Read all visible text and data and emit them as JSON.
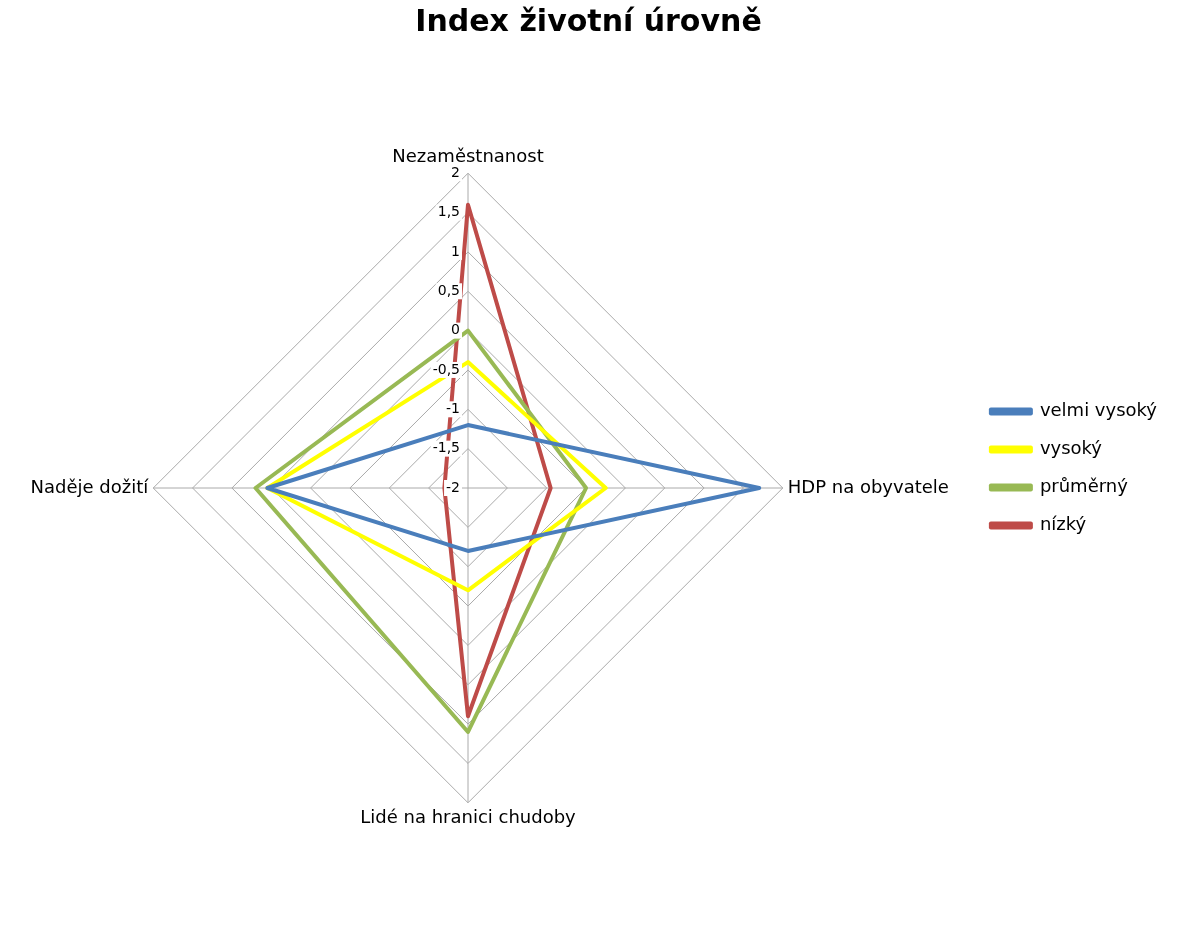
{
  "chart_data": {
    "type": "radar",
    "title": "Index životní úrovně",
    "categories": [
      "Nezaměstnanost",
      "HDP na obyvatele",
      "Lidé na hranici chudoby",
      "Naděje dožití"
    ],
    "series": [
      {
        "name": "velmi vysoký",
        "color": "#4a7ebb",
        "values": [
          -1.2,
          1.7,
          -1.2,
          0.55
        ]
      },
      {
        "name": "vysoký",
        "color": "#ffff00",
        "values": [
          -0.4,
          -0.25,
          -0.7,
          0.55
        ]
      },
      {
        "name": "průměrný",
        "color": "#98b954",
        "values": [
          0,
          -0.5,
          1.1,
          0.7
        ]
      },
      {
        "name": "nízký",
        "color": "#be4b48",
        "values": [
          1.6,
          -0.95,
          0.9,
          -1.7
        ]
      }
    ],
    "ylim": [
      -2,
      2
    ],
    "yticks": [
      -2,
      {
        "value": -1.5,
        "label": "-1,5"
      },
      -1,
      {
        "value": -0.5,
        "label": "-0,5"
      },
      0,
      {
        "value": 0.5,
        "label": "0,5"
      },
      1,
      {
        "value": 1.5,
        "label": "1,5"
      },
      2
    ],
    "grid": true,
    "legend": "right",
    "marker": "none",
    "line_style": "solid"
  }
}
